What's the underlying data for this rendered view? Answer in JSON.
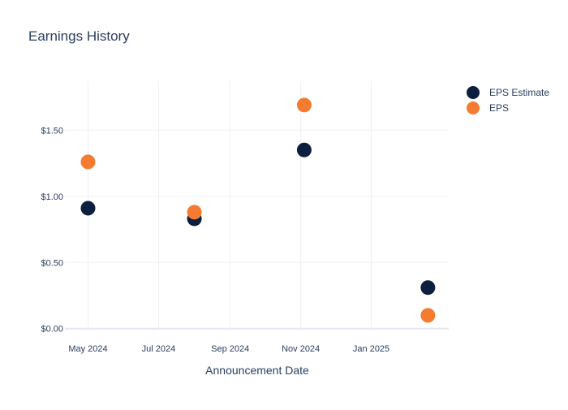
{
  "chart_data": {
    "type": "scatter",
    "title": "Earnings History",
    "xlabel": "Announcement Date",
    "ylabel": "",
    "x_tick_labels": [
      {
        "date": "2024-05-01",
        "label": "May 2024"
      },
      {
        "date": "2024-07-01",
        "label": "Jul 2024"
      },
      {
        "date": "2024-09-01",
        "label": "Sep 2024"
      },
      {
        "date": "2024-11-01",
        "label": "Nov 2024"
      },
      {
        "date": "2025-01-01",
        "label": "Jan 2025"
      }
    ],
    "y_tick_labels": [
      {
        "value": 0,
        "label": "$0.00"
      },
      {
        "value": 0.5,
        "label": "$0.50"
      },
      {
        "value": 1.0,
        "label": "$1.00"
      },
      {
        "value": 1.5,
        "label": "$1.50"
      }
    ],
    "xlim": [
      "2024-04-11",
      "2025-03-09"
    ],
    "ylim": [
      -0.02,
      1.87
    ],
    "grid": true,
    "legend_position": "top-right",
    "series": [
      {
        "name": "EPS Estimate",
        "color": "#0c1f3f",
        "points": [
          {
            "x": "2024-05-01",
            "y": 0.91
          },
          {
            "x": "2024-08-01",
            "y": 0.83
          },
          {
            "x": "2024-11-04",
            "y": 1.35
          },
          {
            "x": "2025-02-19",
            "y": 0.31
          }
        ]
      },
      {
        "name": "EPS",
        "color": "#f47b30",
        "points": [
          {
            "x": "2024-05-01",
            "y": 1.26
          },
          {
            "x": "2024-08-01",
            "y": 0.88
          },
          {
            "x": "2024-11-04",
            "y": 1.69
          },
          {
            "x": "2025-02-19",
            "y": 0.1
          }
        ]
      }
    ]
  }
}
